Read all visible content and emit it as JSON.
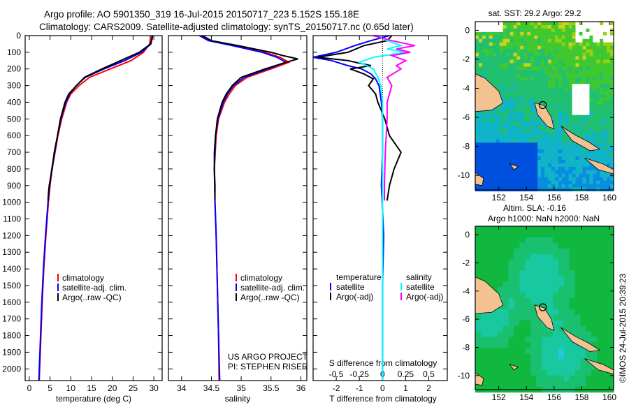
{
  "title_line1": "Argo profile: AO 5901350_319 16-Jul-2015 20150717_223 5.152S 155.18E",
  "title_line2": "Climatology: CARS2009. Satellite-adjusted climatology: synTS_20150717.nc (0.65d later)",
  "credit": "©IMOS 24-Jul-2015 20:39:23",
  "colors": {
    "climatology": "#ff0000",
    "satellite": "#0000ff",
    "argo": "#000000",
    "sal_satellite": "#00ffff",
    "sal_argo": "#ff00ff"
  },
  "chart_data": [
    {
      "type": "line",
      "name": "temperature",
      "xlabel": "temperature (deg C)",
      "ylabel": "",
      "xlim": [
        -1,
        32
      ],
      "ylim": [
        0,
        2070
      ],
      "y_reversed": true,
      "xticks": [
        0,
        5,
        10,
        15,
        20,
        25,
        30
      ],
      "yticks": [
        0,
        100,
        200,
        300,
        400,
        500,
        600,
        700,
        800,
        900,
        1000,
        1100,
        1200,
        1300,
        1400,
        1500,
        1600,
        1700,
        1800,
        1900,
        2000
      ],
      "legend": [
        "climatology",
        "satellite-adj. clim.",
        "Argo(..raw -QC)"
      ],
      "series": [
        {
          "name": "climatology",
          "depth": [
            0,
            50,
            100,
            150,
            200,
            250,
            300,
            350,
            400,
            500,
            600,
            700,
            800,
            900,
            1000,
            1200,
            1400,
            1600,
            1800,
            2000,
            2070
          ],
          "values": [
            29.2,
            29.0,
            27.5,
            24.5,
            19.5,
            14.5,
            12.0,
            10.0,
            9.0,
            7.8,
            6.9,
            6.2,
            5.5,
            5.0,
            4.6,
            4.0,
            3.5,
            3.1,
            2.8,
            2.5,
            2.4
          ]
        },
        {
          "name": "satellite-adj. clim.",
          "depth": [
            0,
            50,
            100,
            150,
            200,
            250,
            300,
            350,
            400,
            500,
            600,
            700,
            800,
            900,
            1000,
            1200,
            1400,
            1600,
            1800,
            2000,
            2070
          ],
          "values": [
            29.6,
            29.3,
            27.0,
            23.0,
            18.0,
            13.5,
            11.3,
            9.7,
            8.8,
            7.6,
            6.8,
            6.1,
            5.4,
            4.9,
            4.5,
            3.9,
            3.4,
            3.0,
            2.7,
            2.4,
            2.3
          ]
        },
        {
          "name": "Argo(..raw -QC)",
          "depth": [
            0,
            20,
            50,
            100,
            150,
            200,
            250,
            300,
            350,
            400,
            500,
            600,
            700,
            800,
            900,
            950,
            990
          ],
          "values": [
            29.7,
            29.6,
            29.2,
            26.5,
            22.0,
            17.5,
            13.3,
            11.4,
            9.5,
            8.6,
            7.5,
            6.8,
            6.0,
            5.5,
            4.8,
            4.6,
            4.5
          ]
        }
      ]
    },
    {
      "type": "line",
      "name": "salinity",
      "xlabel": "salinity",
      "xlim": [
        33.78,
        36.1
      ],
      "ylim": [
        0,
        2070
      ],
      "y_reversed": true,
      "xticks": [
        34,
        34.5,
        35,
        35.5,
        36
      ],
      "legend": [
        "climatology",
        "satellite-adj. clim.",
        "Argo(..raw -QC)"
      ],
      "annotation": [
        "US ARGO PROJECT",
        "PI: STEPHEN RISER"
      ],
      "series": [
        {
          "name": "climatology",
          "depth": [
            0,
            30,
            60,
            100,
            130,
            160,
            200,
            250,
            300,
            350,
            400,
            500,
            600,
            800,
            1000,
            1200,
            1500,
            1800,
            2070
          ],
          "values": [
            34.33,
            34.48,
            34.9,
            35.4,
            35.65,
            35.8,
            35.5,
            35.1,
            34.9,
            34.8,
            34.72,
            34.62,
            34.58,
            34.55,
            34.56,
            34.58,
            34.6,
            34.62,
            34.63
          ]
        },
        {
          "name": "satellite-adj. clim.",
          "depth": [
            0,
            30,
            60,
            100,
            130,
            160,
            200,
            250,
            300,
            350,
            400,
            500,
            600,
            800,
            1000,
            1200,
            1500,
            1800,
            2070
          ],
          "values": [
            34.3,
            34.45,
            34.85,
            35.35,
            35.6,
            35.75,
            35.45,
            35.05,
            34.87,
            34.77,
            34.7,
            34.61,
            34.57,
            34.55,
            34.56,
            34.58,
            34.6,
            34.62,
            34.64
          ]
        },
        {
          "name": "Argo(..raw -QC)",
          "depth": [
            0,
            30,
            60,
            100,
            120,
            140,
            160,
            200,
            250,
            300,
            350,
            400,
            500,
            600,
            700,
            800,
            900,
            990
          ],
          "values": [
            34.35,
            34.5,
            34.95,
            35.5,
            35.7,
            35.95,
            35.75,
            35.4,
            35.0,
            34.85,
            34.75,
            34.68,
            34.6,
            34.57,
            34.55,
            34.55,
            34.56,
            34.56
          ]
        }
      ]
    },
    {
      "type": "line",
      "name": "difference",
      "xlabel": "T difference from climatology",
      "x2label": "S difference from climatology",
      "xlim": [
        -3,
        2.8
      ],
      "ylim": [
        0,
        2070
      ],
      "y_reversed": true,
      "xticks": [
        -2,
        -1,
        0,
        1,
        2
      ],
      "x2ticks": [
        "-0.5",
        "-0.25",
        "0",
        "0.25",
        "0.5"
      ],
      "x2_per_x": 0.25,
      "legend": {
        "temperature": [
          "satellite",
          "Argo(-adj)"
        ],
        "salinity": [
          "satellite",
          "Argo(-adj)"
        ],
        "headers": [
          "temperature",
          "salinity"
        ]
      },
      "series": [
        {
          "name": "T satellite",
          "depth": [
            0,
            30,
            60,
            100,
            130,
            150,
            180,
            200,
            230,
            260,
            300,
            400,
            500,
            700,
            900,
            1200,
            1500,
            2070
          ],
          "values": [
            0.3,
            -0.5,
            -1.2,
            -2.0,
            -3.0,
            -2.2,
            -1.5,
            -0.9,
            -0.5,
            -0.3,
            -0.15,
            -0.05,
            0,
            0,
            -0.05,
            0.05,
            0,
            0
          ]
        },
        {
          "name": "T Argo(-adj)",
          "depth": [
            0,
            30,
            60,
            100,
            130,
            150,
            180,
            200,
            230,
            260,
            300,
            350,
            400,
            500,
            600,
            700,
            800,
            900,
            990
          ],
          "values": [
            0.4,
            0.2,
            -0.8,
            -1.5,
            -2.8,
            -1.5,
            -0.5,
            -1.4,
            -0.8,
            -0.4,
            -0.6,
            -0.3,
            -0.2,
            0.1,
            0.3,
            0.8,
            0.5,
            0.3,
            0.2
          ]
        },
        {
          "name": "S satellite",
          "depth": [
            0,
            30,
            60,
            80,
            100,
            130,
            160,
            200,
            250,
            300,
            400,
            600,
            900,
            1200,
            1600,
            2070
          ],
          "values": [
            -0.05,
            0.05,
            0.2,
            0.05,
            0.25,
            -0.1,
            -0.25,
            -0.1,
            -0.05,
            -0.02,
            0,
            0,
            0,
            0,
            0,
            0
          ]
        },
        {
          "name": "S Argo(-adj)",
          "depth": [
            0,
            30,
            60,
            80,
            100,
            120,
            150,
            180,
            200,
            250,
            300,
            400,
            500,
            700,
            900,
            990
          ],
          "values": [
            -0.1,
            0.1,
            0.35,
            0.15,
            0.3,
            0.1,
            0.25,
            0.15,
            0.2,
            0.05,
            0.1,
            0.05,
            0.05,
            0.03,
            0.02,
            0.02
          ]
        }
      ]
    },
    {
      "type": "heatmap",
      "name": "sst-map",
      "title": "sat. SST: 29.2  Argo: 29.2",
      "xlim": [
        150.3,
        160.3
      ],
      "ylim": [
        -11,
        0.6
      ],
      "xticks": [
        152,
        154,
        156,
        158,
        160
      ],
      "yticks": [
        0,
        -2,
        -4,
        -6,
        -8,
        -10
      ],
      "marker": {
        "lon": 155.18,
        "lat": -5.152
      }
    },
    {
      "type": "heatmap",
      "name": "sla-map",
      "title": "Altim. SLA: -0.16",
      "subtitle": "Argo h1000: NaN h2000: NaN",
      "xlim": [
        150.3,
        160.3
      ],
      "ylim": [
        -11,
        0.6
      ],
      "xticks": [
        152,
        154,
        156,
        158,
        160
      ],
      "yticks": [
        0,
        -2,
        -4,
        -6,
        -8,
        -10
      ],
      "marker": {
        "lon": 155.18,
        "lat": -5.152
      }
    }
  ]
}
